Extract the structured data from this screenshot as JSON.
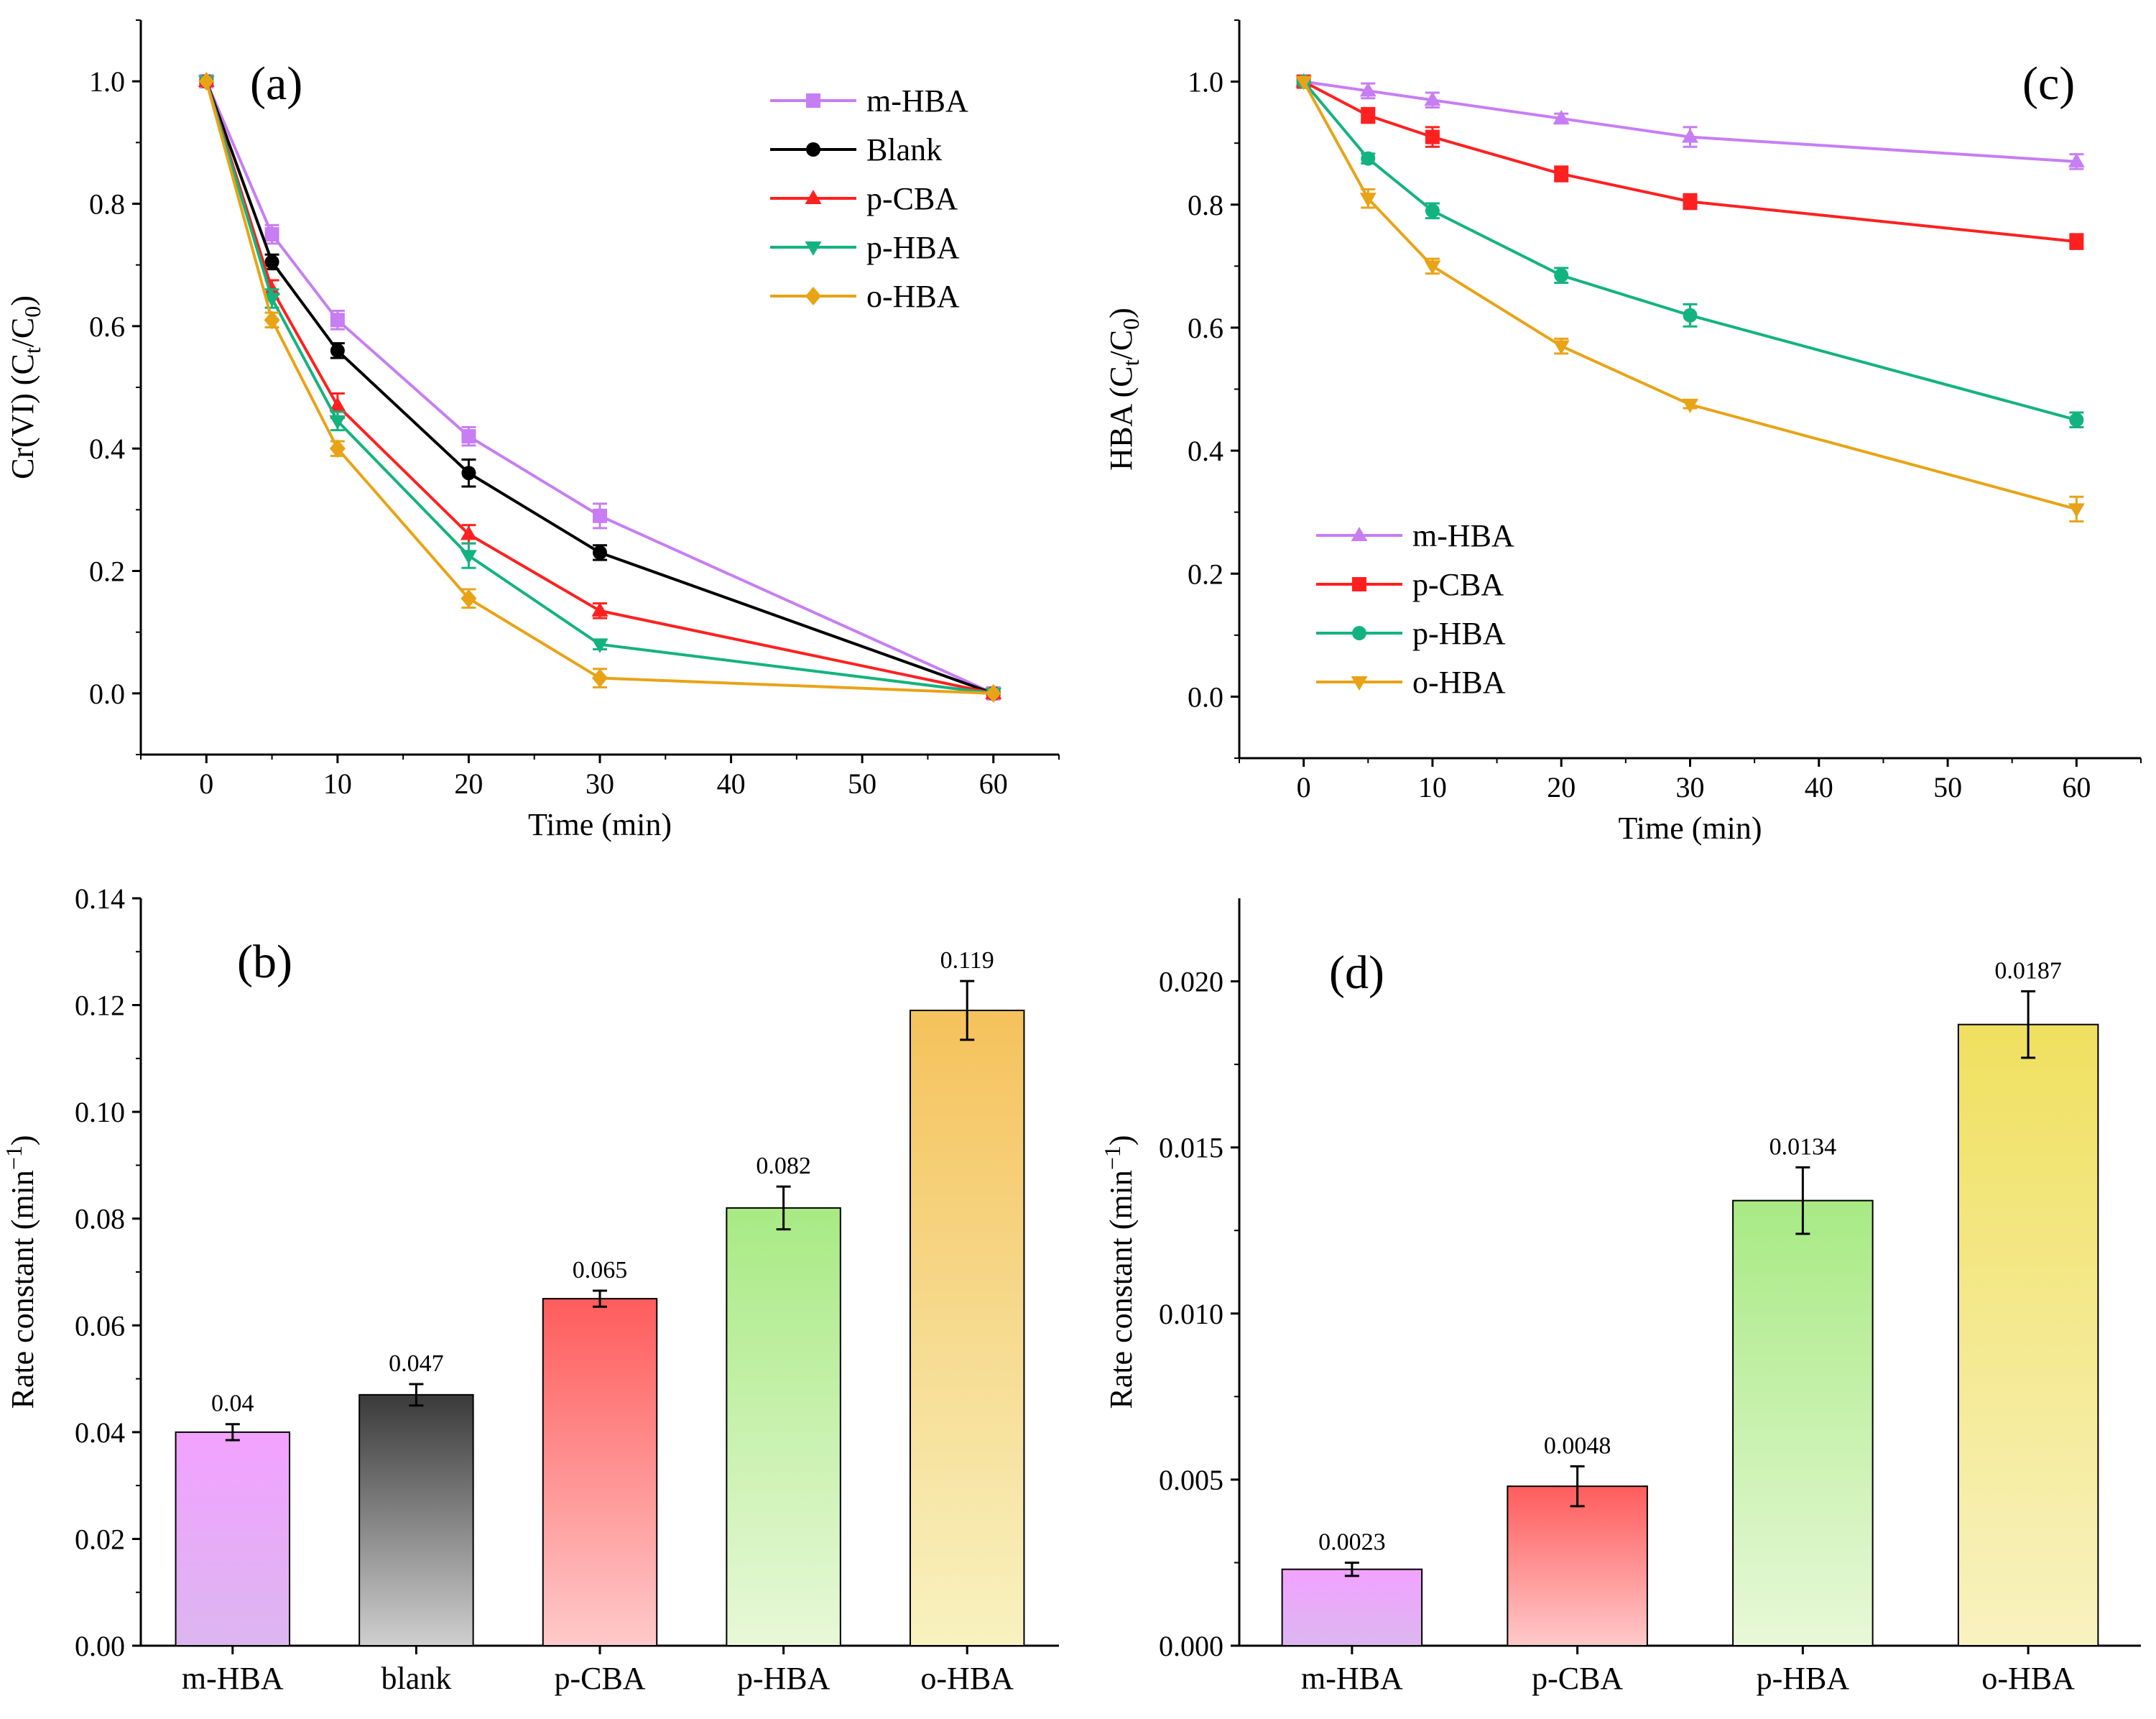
{
  "chart_data": [
    {
      "panel": "a",
      "panel_label": "(a)",
      "type": "line",
      "xlabel": "Time (min)",
      "ylabel": "Cr(VI) (C_t/C_0)",
      "ylabel_parts": [
        "Cr(VI) (C",
        "t",
        "/C",
        "0",
        ")"
      ],
      "x": [
        0,
        5,
        10,
        20,
        30,
        60
      ],
      "xlim": [
        -5,
        65
      ],
      "ylim": [
        -0.1,
        1.1
      ],
      "xticks": [
        0,
        10,
        20,
        30,
        40,
        50,
        60
      ],
      "yticks": [
        0.0,
        0.2,
        0.4,
        0.6,
        0.8,
        1.0
      ],
      "legend_position": "top-right",
      "series": [
        {
          "name": "m-HBA",
          "color": "#c77df3",
          "marker": "square",
          "values": [
            1.0,
            0.75,
            0.61,
            0.42,
            0.29,
            0.0
          ],
          "errors": [
            0,
            0.015,
            0.015,
            0.015,
            0.02,
            0
          ]
        },
        {
          "name": "Blank",
          "color": "#000000",
          "marker": "circle",
          "values": [
            1.0,
            0.705,
            0.56,
            0.36,
            0.23,
            0.0
          ],
          "errors": [
            0,
            0.012,
            0.012,
            0.022,
            0.012,
            0
          ]
        },
        {
          "name": "p-CBA",
          "color": "#ff2020",
          "marker": "triangle-up",
          "values": [
            1.0,
            0.66,
            0.47,
            0.26,
            0.135,
            0.0
          ],
          "errors": [
            0,
            0.015,
            0.02,
            0.015,
            0.012,
            0
          ]
        },
        {
          "name": "p-HBA",
          "color": "#13b37f",
          "marker": "triangle-down",
          "values": [
            1.0,
            0.645,
            0.445,
            0.225,
            0.08,
            0.0
          ],
          "errors": [
            0,
            0.015,
            0.015,
            0.02,
            0.008,
            0
          ]
        },
        {
          "name": "o-HBA",
          "color": "#e8a317",
          "marker": "diamond",
          "values": [
            1.0,
            0.61,
            0.4,
            0.155,
            0.025,
            0.0
          ],
          "errors": [
            0,
            0.012,
            0.012,
            0.015,
            0.015,
            0
          ]
        }
      ]
    },
    {
      "panel": "b",
      "panel_label": "(b)",
      "type": "bar",
      "ylabel": "Rate constant (min^-1)",
      "ylabel_parts": [
        "Rate constant (min",
        "−1",
        ")"
      ],
      "categories": [
        "m-HBA",
        "blank",
        "p-CBA",
        "p-HBA",
        "o-HBA"
      ],
      "values": [
        0.04,
        0.047,
        0.065,
        0.082,
        0.119
      ],
      "value_labels": [
        "0.04",
        "0.047",
        "0.065",
        "0.082",
        "0.119"
      ],
      "errors": [
        0.0015,
        0.002,
        0.0015,
        0.004,
        0.0055
      ],
      "colors_top": [
        "#f2a2ff",
        "#3a3a3a",
        "#ff5c5c",
        "#a8ea84",
        "#f5c25c"
      ],
      "colors_bottom": [
        "#dcb6f0",
        "#cfcfcf",
        "#ffc9c9",
        "#e8f8d8",
        "#f8f2c0"
      ],
      "ylim": [
        0,
        0.14
      ],
      "yticks": [
        "0.00",
        "0.02",
        "0.04",
        "0.06",
        "0.08",
        "0.10",
        "0.12",
        "0.14"
      ]
    },
    {
      "panel": "c",
      "panel_label": "(c)",
      "type": "line",
      "xlabel": "Time (min)",
      "ylabel": "HBA (C_t/C_0)",
      "ylabel_parts": [
        "HBA (C",
        "t",
        "/C",
        "0",
        ")"
      ],
      "x": [
        0,
        5,
        10,
        20,
        30,
        60
      ],
      "xlim": [
        -5,
        65
      ],
      "ylim": [
        -0.1,
        1.1
      ],
      "xticks": [
        0,
        10,
        20,
        30,
        40,
        50,
        60
      ],
      "yticks": [
        0.0,
        0.2,
        0.4,
        0.6,
        0.8,
        1.0
      ],
      "legend_position": "bottom-left",
      "series": [
        {
          "name": "m-HBA",
          "color": "#c77df3",
          "marker": "triangle-up",
          "values": [
            1.0,
            0.985,
            0.97,
            0.94,
            0.91,
            0.87
          ],
          "errors": [
            0,
            0.012,
            0.012,
            0.008,
            0.016,
            0.012
          ]
        },
        {
          "name": "p-CBA",
          "color": "#ff2020",
          "marker": "square",
          "values": [
            1.0,
            0.945,
            0.91,
            0.85,
            0.805,
            0.74
          ],
          "errors": [
            0,
            0.012,
            0.016,
            0.012,
            0.012,
            0.012
          ]
        },
        {
          "name": "p-HBA",
          "color": "#13b37f",
          "marker": "circle",
          "values": [
            1.0,
            0.875,
            0.79,
            0.685,
            0.62,
            0.45
          ],
          "errors": [
            0,
            0.008,
            0.012,
            0.012,
            0.018,
            0.012
          ]
        },
        {
          "name": "o-HBA",
          "color": "#e8a317",
          "marker": "triangle-down",
          "values": [
            1.0,
            0.81,
            0.7,
            0.57,
            0.475,
            0.305
          ],
          "errors": [
            0,
            0.015,
            0.012,
            0.012,
            0.006,
            0.02
          ]
        }
      ]
    },
    {
      "panel": "d",
      "panel_label": "(d)",
      "type": "bar",
      "ylabel": "Rate constant (min^-1)",
      "ylabel_parts": [
        "Rate constant (min",
        "−1",
        ")"
      ],
      "categories": [
        "m-HBA",
        "p-CBA",
        "p-HBA",
        "o-HBA"
      ],
      "values": [
        0.0023,
        0.0048,
        0.0134,
        0.0187
      ],
      "value_labels": [
        "0.0023",
        "0.0048",
        "0.0134",
        "0.0187"
      ],
      "errors": [
        0.0002,
        0.0006,
        0.001,
        0.001
      ],
      "colors_top": [
        "#f2a2ff",
        "#ff5c5c",
        "#a8ea84",
        "#f0e060"
      ],
      "colors_bottom": [
        "#dcb6f0",
        "#ffc9c9",
        "#e8f8d8",
        "#f8f2c0"
      ],
      "ylim": [
        0,
        0.0225
      ],
      "yticks": [
        "0.000",
        "0.005",
        "0.010",
        "0.015",
        "0.020"
      ]
    }
  ]
}
